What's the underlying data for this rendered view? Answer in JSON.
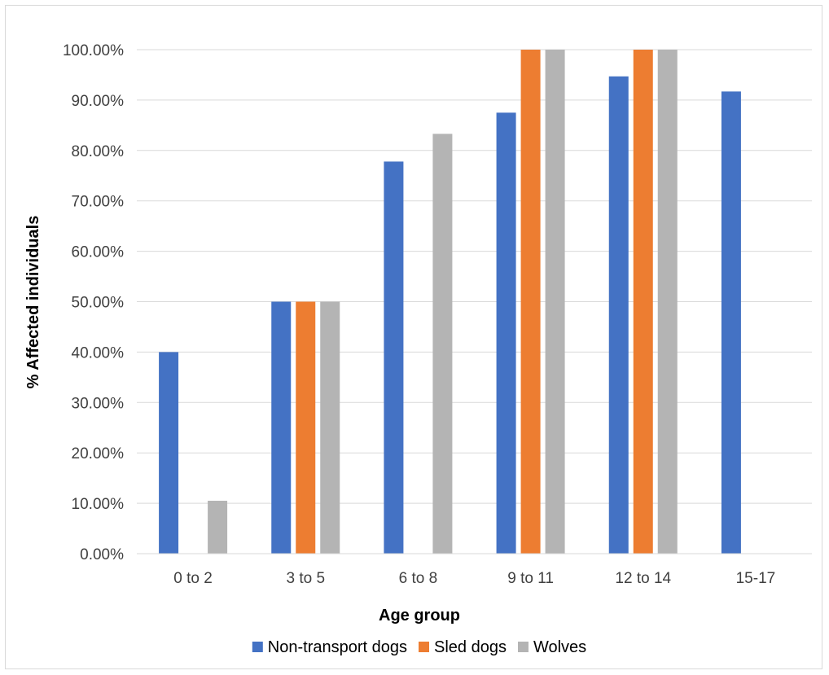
{
  "chart_data": {
    "type": "bar",
    "title": "",
    "xlabel": "Age group",
    "ylabel": "% Affected individuals",
    "categories": [
      "0 to 2",
      "3 to 5",
      "6 to 8",
      "9 to 11",
      "12 to 14",
      "15-17"
    ],
    "series": [
      {
        "name": "Non-transport dogs",
        "color": "#4472c4",
        "values": [
          40.0,
          50.0,
          77.8,
          87.5,
          94.7,
          91.7
        ]
      },
      {
        "name": "Sled dogs",
        "color": "#ed7d31",
        "values": [
          0,
          50.0,
          0,
          100.0,
          100.0,
          0
        ]
      },
      {
        "name": "Wolves",
        "color": "#b4b4b4",
        "values": [
          10.5,
          50.0,
          83.3,
          100.0,
          100.0,
          0
        ]
      }
    ],
    "ylim": [
      0,
      100
    ],
    "yticks": [
      "0.00%",
      "10.00%",
      "20.00%",
      "30.00%",
      "40.00%",
      "50.00%",
      "60.00%",
      "70.00%",
      "80.00%",
      "90.00%",
      "100.00%"
    ],
    "grid": true,
    "legend_position": "bottom"
  }
}
